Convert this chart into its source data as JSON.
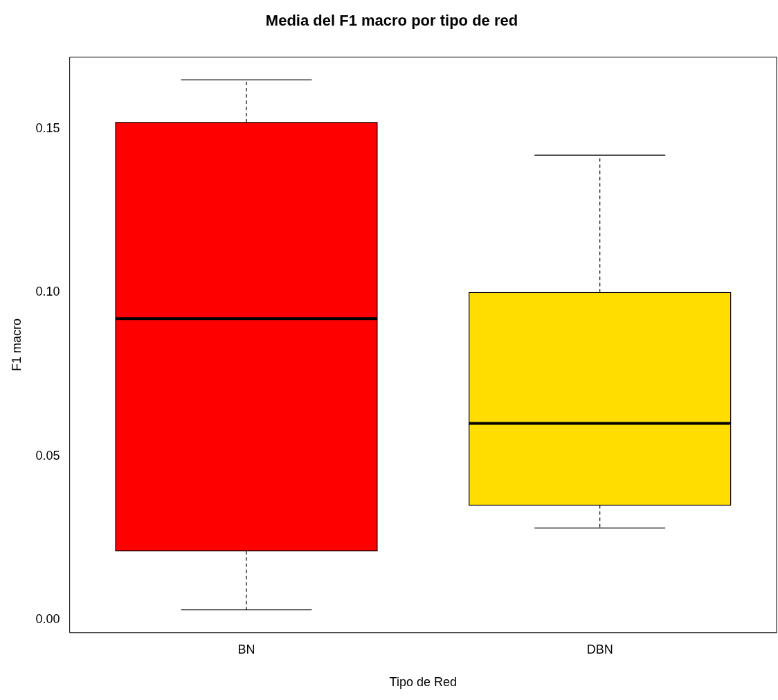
{
  "chart_data": {
    "type": "box",
    "title": "Media del F1 macro por tipo de red",
    "xlabel": "Tipo de Red",
    "ylabel": "F1 macro",
    "categories": [
      "BN",
      "DBN"
    ],
    "colors": [
      "#ff0000",
      "#ffdd00"
    ],
    "boxes": [
      {
        "low": 0.003,
        "q1": 0.021,
        "median": 0.092,
        "q3": 0.152,
        "high": 0.165
      },
      {
        "low": 0.028,
        "q1": 0.035,
        "median": 0.06,
        "q3": 0.1,
        "high": 0.142
      }
    ],
    "ylim": [
      -0.004,
      0.172
    ],
    "yticks": [
      {
        "value": 0,
        "label": "0.00"
      },
      {
        "value": 0.05,
        "label": "0.05"
      },
      {
        "value": 0.1,
        "label": "0.10"
      },
      {
        "value": 0.15,
        "label": "0.15"
      }
    ],
    "grid": false,
    "legend": false
  }
}
